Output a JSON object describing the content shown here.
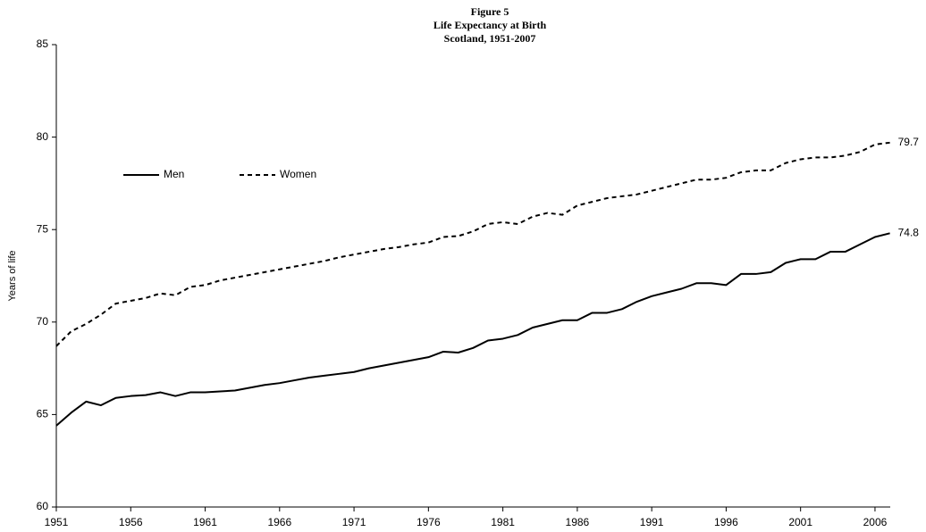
{
  "chart_data": {
    "type": "line",
    "title": [
      "Figure 5",
      "Life Expectancy at Birth",
      "Scotland, 1951-2007"
    ],
    "ylabel": "Years of life",
    "x": [
      1951,
      1952,
      1953,
      1954,
      1955,
      1956,
      1957,
      1958,
      1959,
      1960,
      1961,
      1962,
      1963,
      1964,
      1965,
      1966,
      1967,
      1968,
      1969,
      1970,
      1971,
      1972,
      1973,
      1974,
      1975,
      1976,
      1977,
      1978,
      1979,
      1980,
      1981,
      1982,
      1983,
      1984,
      1985,
      1986,
      1987,
      1988,
      1989,
      1990,
      1991,
      1992,
      1993,
      1994,
      1995,
      1996,
      1997,
      1998,
      1999,
      2000,
      2001,
      2002,
      2003,
      2004,
      2005,
      2006,
      2007
    ],
    "xlim": [
      1951,
      2007
    ],
    "xticks": [
      1951,
      1956,
      1961,
      1966,
      1971,
      1976,
      1981,
      1986,
      1991,
      1996,
      2001,
      2006
    ],
    "ylim": [
      60,
      85
    ],
    "yticks": [
      60,
      65,
      70,
      75,
      80,
      85
    ],
    "grid": false,
    "legend": "upper left",
    "series": [
      {
        "name": "Men",
        "color": "#000000",
        "line_style": "solid",
        "values": [
          64.4,
          65.1,
          65.7,
          65.5,
          65.9,
          66.0,
          66.05,
          66.2,
          66.0,
          66.2,
          66.2,
          66.25,
          66.3,
          66.45,
          66.6,
          66.7,
          66.85,
          67.0,
          67.1,
          67.2,
          67.3,
          67.5,
          67.65,
          67.8,
          67.95,
          68.1,
          68.4,
          68.35,
          68.6,
          69.0,
          69.1,
          69.3,
          69.7,
          69.9,
          70.1,
          70.1,
          70.5,
          70.5,
          70.7,
          71.1,
          71.4,
          71.6,
          71.8,
          72.1,
          72.1,
          72.0,
          72.6,
          72.6,
          72.7,
          73.2,
          73.4,
          73.4,
          73.8,
          73.8,
          74.2,
          74.6,
          74.8
        ]
      },
      {
        "name": "Women",
        "color": "#000000",
        "line_style": "dashed",
        "values": [
          68.7,
          69.5,
          69.9,
          70.4,
          71.0,
          71.15,
          71.3,
          71.55,
          71.45,
          71.9,
          72.0,
          72.25,
          72.4,
          72.55,
          72.7,
          72.85,
          73.0,
          73.15,
          73.3,
          73.5,
          73.65,
          73.8,
          73.95,
          74.05,
          74.2,
          74.3,
          74.6,
          74.65,
          74.9,
          75.3,
          75.4,
          75.3,
          75.7,
          75.9,
          75.8,
          76.3,
          76.5,
          76.7,
          76.8,
          76.9,
          77.1,
          77.3,
          77.5,
          77.7,
          77.7,
          77.8,
          78.1,
          78.2,
          78.2,
          78.6,
          78.8,
          78.9,
          78.9,
          79.0,
          79.2,
          79.6,
          79.7
        ]
      }
    ]
  }
}
